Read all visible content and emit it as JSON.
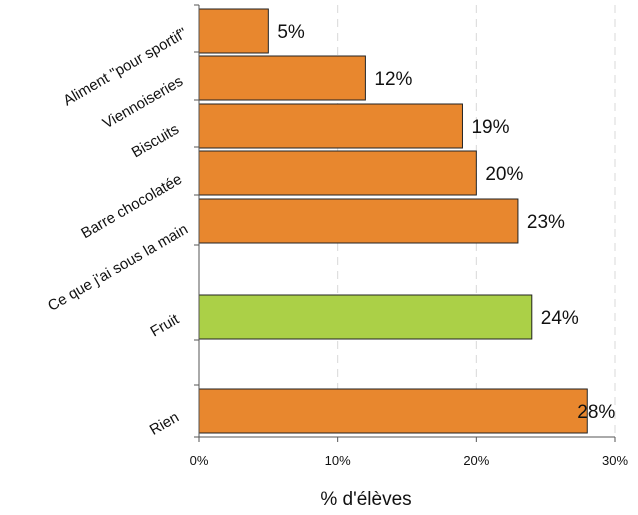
{
  "chart_data": {
    "type": "bar",
    "orientation": "horizontal",
    "categories": [
      "Aliment \"pour sportif\"",
      "Viennoiseries",
      "Biscuits",
      "Barre chocolatée",
      "Ce que j'ai sous la main",
      "Fruit",
      "Rien"
    ],
    "values": [
      5,
      12,
      19,
      20,
      23,
      24,
      28
    ],
    "data_labels": [
      "5%",
      "12%",
      "19%",
      "20%",
      "23%",
      "24%",
      "28%"
    ],
    "bar_colors": [
      "#E8872E",
      "#E8872E",
      "#E8872E",
      "#E8872E",
      "#E8872E",
      "#ABD047",
      "#E8872E"
    ],
    "xlabel": "% d'élèves",
    "ylabel": "",
    "title": "",
    "xlim": [
      0,
      30
    ],
    "xticks": [
      0,
      10,
      20,
      30
    ],
    "xtick_labels": [
      "0%",
      "10%",
      "20%",
      "30%"
    ],
    "grid": "vertical dashed",
    "legend": "none"
  }
}
